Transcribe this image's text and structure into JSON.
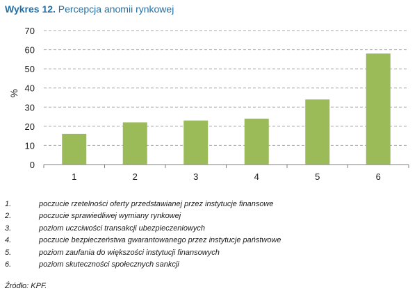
{
  "figure": {
    "label": "Wykres 12.",
    "title": "Percepcja anomii rynkowej"
  },
  "chart_data": {
    "type": "bar",
    "categories": [
      "1",
      "2",
      "3",
      "4",
      "5",
      "6"
    ],
    "values": [
      16,
      22,
      23,
      24,
      34,
      58
    ],
    "ylabel": "%",
    "xlabel": "",
    "ylim": [
      0,
      70
    ],
    "yticks": [
      0,
      10,
      20,
      30,
      40,
      50,
      60,
      70
    ],
    "grid": true,
    "bar_color": "#9bbb59"
  },
  "legend": [
    {
      "num": "1.",
      "text": "poczucie rzetelności oferty przedstawianej przez instytucje finansowe"
    },
    {
      "num": "2.",
      "text": "poczucie sprawiedliwej wymiany rynkowej"
    },
    {
      "num": "3.",
      "text": "poziom uczciwości transakcji ubezpieczeniowych"
    },
    {
      "num": "4.",
      "text": "poczucie bezpieczeństwa gwarantowanego przez instytucje państwowe"
    },
    {
      "num": "5.",
      "text": "poziom zaufania do większości instytucji finansowych"
    },
    {
      "num": "6.",
      "text": "poziom skuteczności społecznych sankcji"
    }
  ],
  "source": "Źródło: KPF."
}
